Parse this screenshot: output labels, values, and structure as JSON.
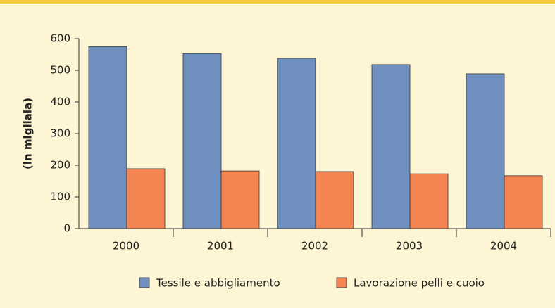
{
  "chart_data": {
    "type": "bar",
    "y_label": "(in migliaia)",
    "categories": [
      "2000",
      "2001",
      "2002",
      "2003",
      "2004"
    ],
    "series": [
      {
        "name": "Tessile e abbigliamento",
        "color": "#6f8fbf",
        "values": [
          575,
          553,
          538,
          518,
          489
        ]
      },
      {
        "name": "Lavorazione pelli e cuoio",
        "color": "#f58453",
        "values": [
          189,
          182,
          180,
          173,
          167
        ]
      }
    ],
    "ylim": [
      0,
      600
    ],
    "yticks": [
      0,
      100,
      200,
      300,
      400,
      500,
      600
    ],
    "grid": false
  }
}
